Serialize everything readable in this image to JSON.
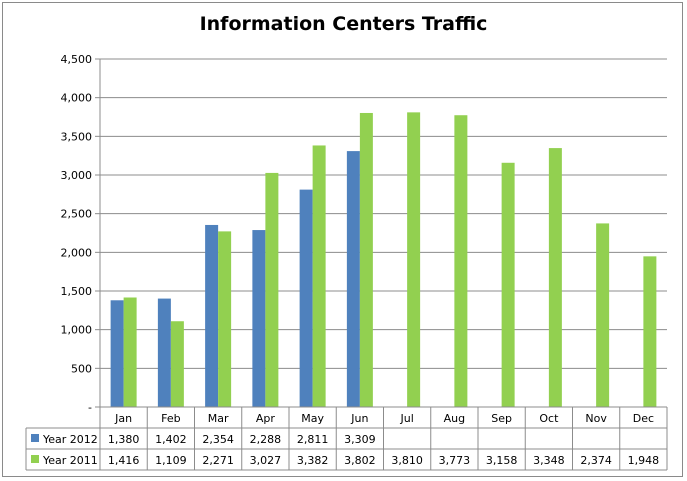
{
  "chart_data": {
    "type": "bar",
    "title": "Information Centers Traffic",
    "categories": [
      "Jan",
      "Feb",
      "Mar",
      "Apr",
      "May",
      "Jun",
      "Jul",
      "Aug",
      "Sep",
      "Oct",
      "Nov",
      "Dec"
    ],
    "series": [
      {
        "name": "Year 2012",
        "color": "#4f81bd",
        "values": [
          1380,
          1402,
          2354,
          2288,
          2811,
          3309,
          null,
          null,
          null,
          null,
          null,
          null
        ],
        "labels": [
          "1,380",
          "1,402",
          "2,354",
          "2,288",
          "2,811",
          "3,309",
          "",
          "",
          "",
          "",
          "",
          ""
        ]
      },
      {
        "name": "Year 2011",
        "color": "#92d050",
        "values": [
          1416,
          1109,
          2271,
          3027,
          3382,
          3802,
          3810,
          3773,
          3158,
          3348,
          2374,
          1948
        ],
        "labels": [
          "1,416",
          "1,109",
          "2,271",
          "3,027",
          "3,382",
          "3,802",
          "3,810",
          "3,773",
          "3,158",
          "3,348",
          "2,374",
          "1,948"
        ]
      }
    ],
    "ylim": [
      0,
      4500
    ],
    "yticks": [
      0,
      500,
      1000,
      1500,
      2000,
      2500,
      3000,
      3500,
      4000,
      4500
    ],
    "ytick_labels": [
      "-",
      "500",
      "1,000",
      "1,500",
      "2,000",
      "2,500",
      "3,000",
      "3,500",
      "4,000",
      "4,500"
    ],
    "grid": true,
    "legend": "data-table-left"
  }
}
